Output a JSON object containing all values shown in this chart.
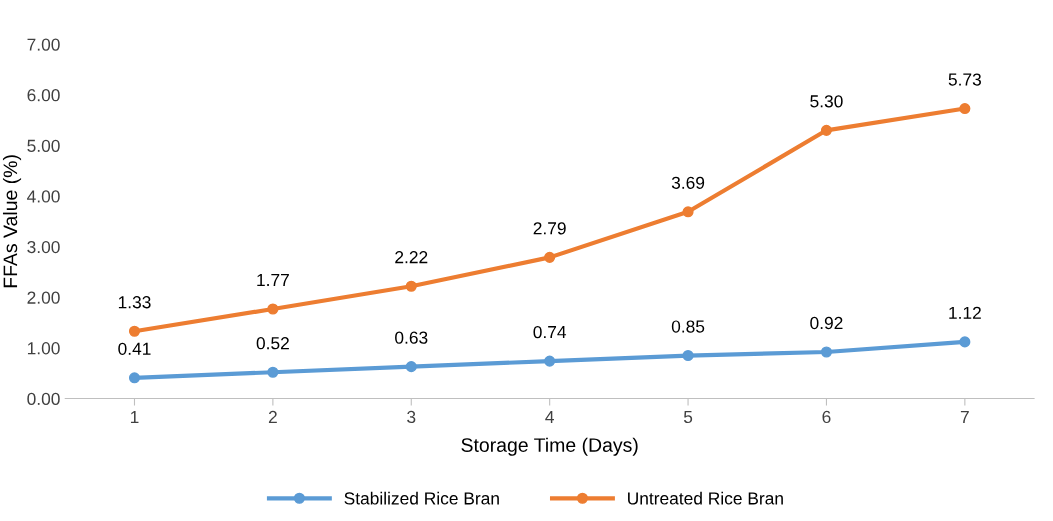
{
  "chart_data": {
    "type": "line",
    "xlabel": "Storage Time (Days)",
    "ylabel": "FFAs Value (%)",
    "categories": [
      "1",
      "2",
      "3",
      "4",
      "5",
      "6",
      "7"
    ],
    "series": [
      {
        "name": "Stabilized Rice Bran",
        "color": "#5b9bd5",
        "values": [
          0.41,
          0.52,
          0.63,
          0.74,
          0.85,
          0.92,
          1.12
        ],
        "value_labels": [
          "0.41",
          "0.52",
          "0.63",
          "0.74",
          "0.85",
          "0.92",
          "1.12"
        ]
      },
      {
        "name": "Untreated Rice Bran",
        "color": "#ed7d31",
        "values": [
          1.33,
          1.77,
          2.22,
          2.79,
          3.69,
          5.3,
          5.73
        ],
        "value_labels": [
          "1.33",
          "1.77",
          "2.22",
          "2.79",
          "3.69",
          "5.30",
          "5.73"
        ]
      }
    ],
    "ylim": [
      0,
      7
    ],
    "yticks": [
      {
        "value": 0,
        "label": "0.00"
      },
      {
        "value": 1,
        "label": "1.00"
      },
      {
        "value": 2,
        "label": "2.00"
      },
      {
        "value": 3,
        "label": "3.00"
      },
      {
        "value": 4,
        "label": "4.00"
      },
      {
        "value": 5,
        "label": "5.00"
      },
      {
        "value": 6,
        "label": "6.00"
      },
      {
        "value": 7,
        "label": "7.00"
      }
    ],
    "grid": false,
    "legend": "bottom",
    "marker": "circle",
    "line_style": "solid"
  }
}
